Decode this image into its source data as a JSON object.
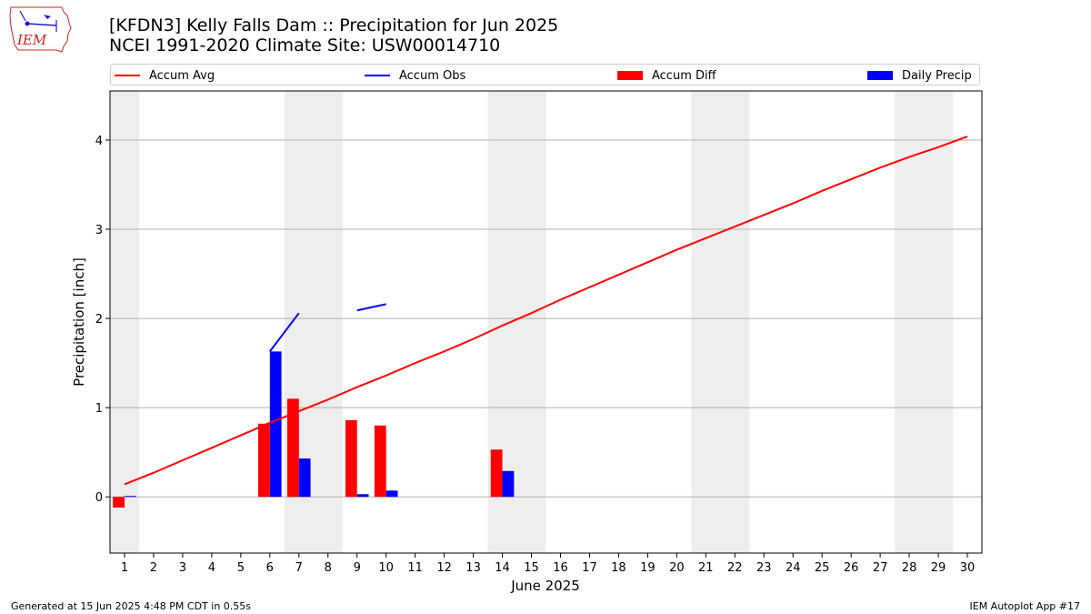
{
  "header": {
    "title": "[KFDN3] Kelly Falls Dam :: Precipitation for Jun 2025",
    "subtitle": "NCEI 1991-2020 Climate Site: USW00014710",
    "logo_text": "IEM"
  },
  "footer": {
    "left": "Generated at 15 Jun 2025 4:48 PM CDT in 0.55s",
    "right": "IEM Autoplot App #17"
  },
  "colors": {
    "accum_avg": "#ff0000",
    "accum_obs": "#0000ff",
    "accum_diff": "#ff0000",
    "daily_precip": "#0000ff",
    "weekend_band": "#eeeeee",
    "grid": "#b0b0b0"
  },
  "chart_data": {
    "type": "bar",
    "title": "[KFDN3] Kelly Falls Dam :: Precipitation for Jun 2025",
    "subtitle": "NCEI 1991-2020 Climate Site: USW00014710",
    "xlabel": "June 2025",
    "ylabel": "Precipitation [inch]",
    "x": [
      1,
      2,
      3,
      4,
      5,
      6,
      7,
      8,
      9,
      10,
      11,
      12,
      13,
      14,
      15,
      16,
      17,
      18,
      19,
      20,
      21,
      22,
      23,
      24,
      25,
      26,
      27,
      28,
      29,
      30
    ],
    "xlim": [
      0.5,
      30.5
    ],
    "ylim": [
      -0.63,
      4.55
    ],
    "yticks": [
      0,
      1,
      2,
      3,
      4
    ],
    "grid": true,
    "legend_position": "top",
    "weekend_bands": [
      [
        0.5,
        1.5
      ],
      [
        6.5,
        8.5
      ],
      [
        13.5,
        15.5
      ],
      [
        20.5,
        22.5
      ],
      [
        27.5,
        29.5
      ]
    ],
    "series": [
      {
        "name": "Accum Avg",
        "kind": "line",
        "values": [
          0.14,
          0.27,
          0.41,
          0.55,
          0.69,
          0.83,
          0.96,
          1.09,
          1.23,
          1.36,
          1.5,
          1.63,
          1.77,
          1.92,
          2.06,
          2.21,
          2.35,
          2.49,
          2.63,
          2.77,
          2.9,
          3.03,
          3.16,
          3.29,
          3.43,
          3.56,
          3.69,
          3.81,
          3.92,
          4.04
        ]
      },
      {
        "name": "Accum Obs",
        "kind": "line",
        "values": [
          null,
          null,
          null,
          null,
          null,
          1.63,
          2.06,
          null,
          2.09,
          2.16,
          null,
          null,
          null,
          null,
          null,
          null,
          null,
          null,
          null,
          null,
          null,
          null,
          null,
          null,
          null,
          null,
          null,
          null,
          null,
          null
        ]
      },
      {
        "name": "Accum Diff",
        "kind": "bar",
        "offset": -0.2,
        "values": [
          -0.12,
          null,
          null,
          null,
          null,
          0.82,
          1.1,
          null,
          0.86,
          0.8,
          null,
          null,
          null,
          0.53,
          null,
          null,
          null,
          null,
          null,
          null,
          null,
          null,
          null,
          null,
          null,
          null,
          null,
          null,
          null,
          null
        ]
      },
      {
        "name": "Daily Precip",
        "kind": "bar",
        "offset": 0.2,
        "values": [
          0.01,
          null,
          null,
          null,
          null,
          1.63,
          0.43,
          null,
          0.03,
          0.07,
          null,
          null,
          null,
          0.29,
          null,
          null,
          null,
          null,
          null,
          null,
          null,
          null,
          null,
          null,
          null,
          null,
          null,
          null,
          null,
          null
        ]
      }
    ]
  }
}
